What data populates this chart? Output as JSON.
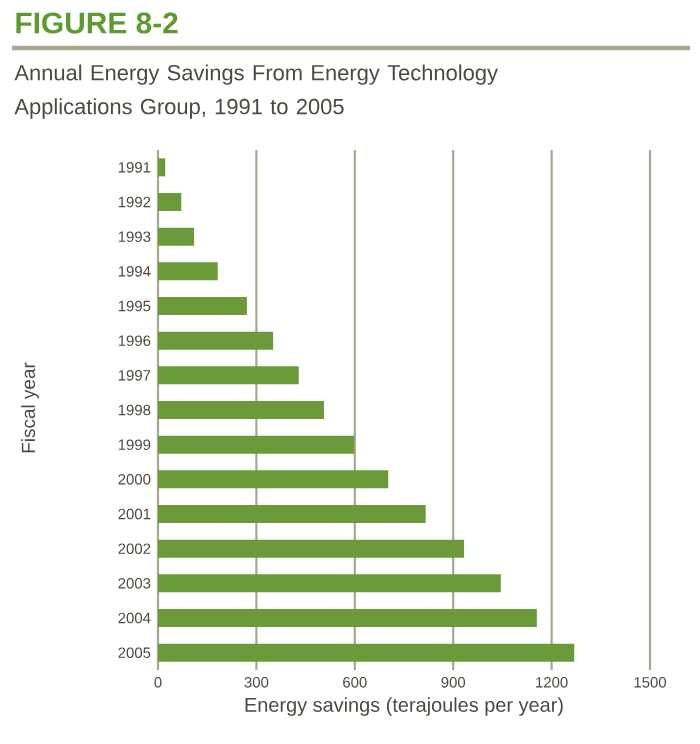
{
  "chart_data": {
    "type": "bar",
    "orientation": "horizontal",
    "title": "FIGURE 8-2",
    "subtitle": "Annual Energy Savings From Energy Technology Applications Group, 1991 to 2005",
    "xlabel": "Energy savings (terajoules per year)",
    "ylabel": "Fiscal year",
    "categories": [
      "1991",
      "1992",
      "1993",
      "1994",
      "1995",
      "1996",
      "1997",
      "1998",
      "1999",
      "2000",
      "2001",
      "2002",
      "2003",
      "2004",
      "2005"
    ],
    "values": [
      22,
      71,
      110,
      182,
      271,
      351,
      429,
      506,
      598,
      702,
      816,
      933,
      1045,
      1155,
      1269
    ],
    "color": "#6a9a3a",
    "xlim": [
      0,
      1500
    ],
    "xticks": [
      0,
      300,
      600,
      900,
      1200,
      1500
    ],
    "grid": "x"
  }
}
